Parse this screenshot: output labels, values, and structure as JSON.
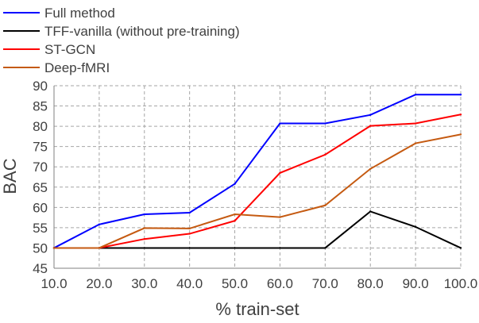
{
  "chart_data": {
    "type": "line",
    "xlabel": "% train-set",
    "ylabel": "BAC",
    "x": [
      "10.0",
      "20.0",
      "30.0",
      "40.0",
      "50.0",
      "60.0",
      "70.0",
      "80.0",
      "90.0",
      "100.0"
    ],
    "xlim": [
      10,
      100
    ],
    "ylim": [
      45,
      90
    ],
    "yticks": [
      "45",
      "50",
      "55",
      "60",
      "65",
      "70",
      "75",
      "80",
      "85",
      "90"
    ],
    "grid": true,
    "legend_position": "top-left",
    "series": [
      {
        "name": "Full method",
        "color": "#0000ff",
        "values": [
          50,
          55.8,
          58.3,
          58.7,
          65.8,
          80.7,
          80.7,
          82.8,
          87.8,
          87.8
        ]
      },
      {
        "name": "TFF-vanilla (without pre-training)",
        "color": "#000000",
        "values": [
          50,
          50,
          50,
          50,
          50,
          50,
          50,
          59,
          55.2,
          50
        ]
      },
      {
        "name": "ST-GCN",
        "color": "#ff0000",
        "values": [
          50,
          50,
          52.2,
          53.5,
          56.7,
          68.5,
          73,
          80.1,
          80.7,
          82.9
        ]
      },
      {
        "name": "Deep-fMRI",
        "color": "#c55a11",
        "values": [
          50,
          50,
          54.9,
          54.8,
          58.3,
          57.6,
          60.5,
          69.5,
          75.8,
          78
        ]
      }
    ]
  }
}
